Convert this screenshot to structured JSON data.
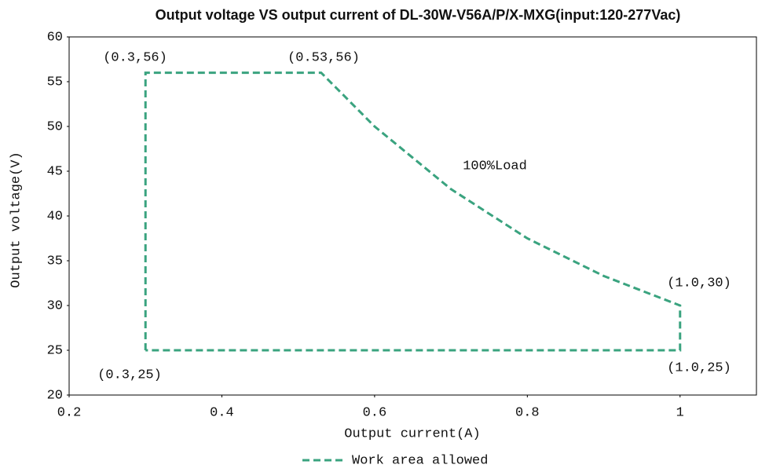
{
  "chart_data": {
    "type": "line",
    "title": "Output voltage VS output current of DL-30W-V56A/P/X-MXG(input:120-277Vac)",
    "x_label": "Output current(A)",
    "y_label": "Output voltage(V)",
    "x": [
      0.3,
      0.3,
      0.53,
      0.6,
      0.7,
      0.8,
      0.9,
      1.0,
      1.0,
      0.3
    ],
    "series": [
      {
        "name": "Work area allowed",
        "color": "#3aa37f",
        "line_style": "dashed",
        "values": [
          25,
          56,
          56,
          50,
          43,
          37.5,
          33.3,
          30,
          25,
          25
        ]
      }
    ],
    "xlim": [
      0.2,
      1.1
    ],
    "xticks": [
      0.2,
      0.4,
      0.6,
      0.8,
      1
    ],
    "ylim": [
      20,
      60
    ],
    "yticks": [
      20,
      25,
      30,
      35,
      40,
      45,
      50,
      55,
      60
    ],
    "grid": false,
    "annotations": [
      "(0.3,56)",
      "(0.53,56)",
      "100%Load",
      "(1.0,30)",
      "(1.0,25)",
      "(0.3,25)"
    ]
  }
}
